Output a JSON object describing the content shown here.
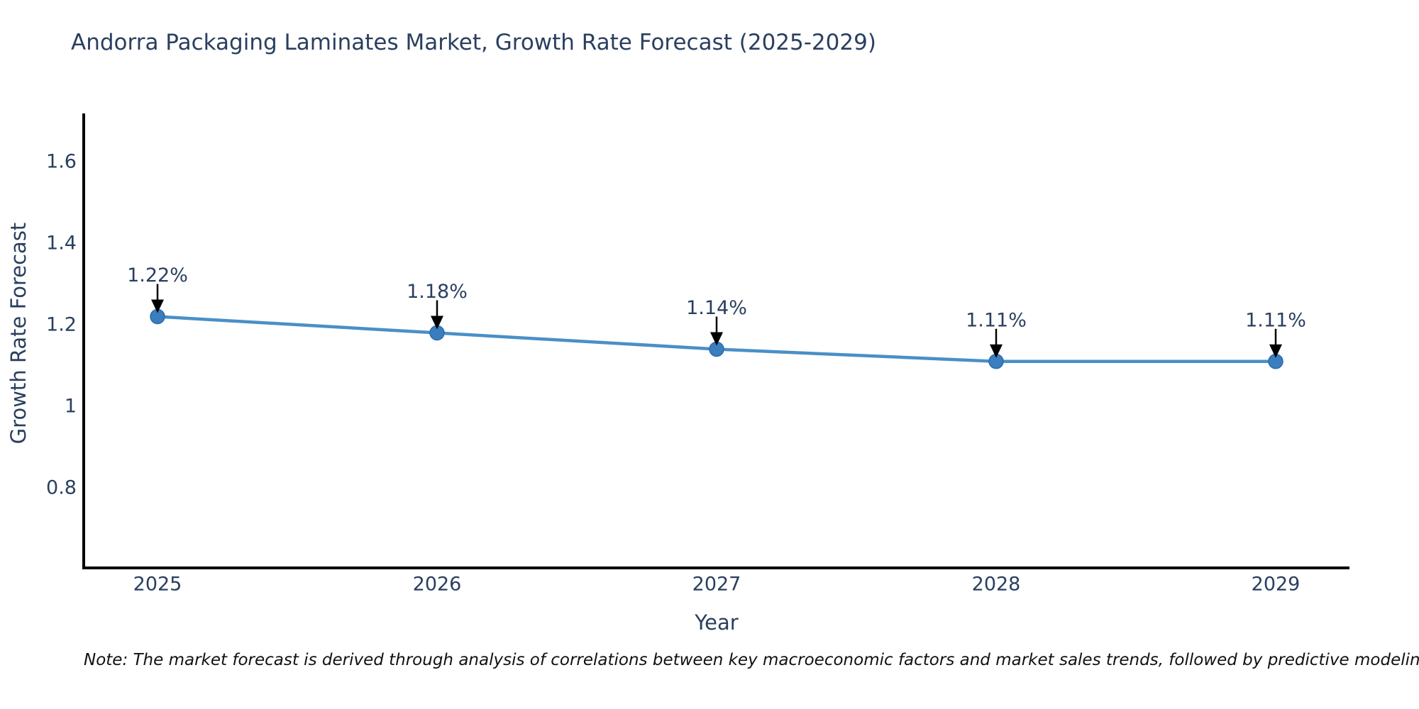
{
  "note": "Note: The market forecast is derived through analysis of correlations between key macroeconomic factors and market sales trends, followed by predictive modeling to project future sales",
  "chart_data": {
    "type": "line",
    "title": "Andorra Packaging Laminates Market, Growth Rate Forecast (2025-2029)",
    "x": [
      "2025",
      "2026",
      "2027",
      "2028",
      "2029"
    ],
    "values": [
      1.22,
      1.18,
      1.14,
      1.11,
      1.11
    ],
    "point_labels": [
      "1.22%",
      "1.18%",
      "1.14%",
      "1.11%",
      "1.11%"
    ],
    "xlabel": "Year",
    "ylabel": "Growth Rate Forecast",
    "yticks": [
      0.8,
      1.0,
      1.2,
      1.4,
      1.6
    ],
    "ytick_labels": [
      "0.8",
      "1",
      "1.2",
      "1.4",
      "1.6"
    ],
    "ylim": [
      0.6,
      1.72
    ],
    "grid": false,
    "legend": false,
    "marker_style": "filled-circle",
    "annotation_style": "text-with-down-arrow",
    "colors": {
      "line": "#4a8fc7",
      "marker": "#3a7ebf",
      "marker_edge": "#2f6da8",
      "axis": "#000000",
      "text": "#2a3f5f",
      "annotation_arrow": "#000000",
      "note_text": "#111111",
      "background": "#ffffff"
    }
  }
}
